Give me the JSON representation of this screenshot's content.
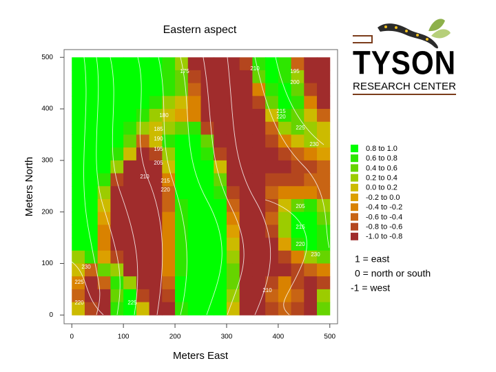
{
  "chart_data": {
    "type": "heatmap",
    "title": "Eastern aspect",
    "xlabel": "Meters East",
    "ylabel": "Meters North",
    "xlim": [
      -15,
      515
    ],
    "ylim": [
      -17,
      515
    ],
    "xticks": [
      0,
      100,
      200,
      300,
      400,
      500
    ],
    "yticks": [
      0,
      100,
      200,
      300,
      400,
      500
    ],
    "x": [
      12.5,
      37.5,
      62.5,
      87.5,
      112.5,
      137.5,
      162.5,
      187.5,
      212.5,
      237.5,
      262.5,
      287.5,
      312.5,
      337.5,
      362.5,
      387.5,
      412.5,
      437.5,
      462.5,
      487.5
    ],
    "y": [
      487.5,
      462.5,
      437.5,
      412.5,
      387.5,
      362.5,
      337.5,
      312.5,
      287.5,
      262.5,
      237.5,
      212.5,
      187.5,
      162.5,
      137.5,
      112.5,
      87.5,
      62.5,
      37.5,
      12.5
    ],
    "values": [
      [
        0.9,
        0.9,
        0.9,
        0.9,
        0.9,
        0.9,
        0.9,
        0.7,
        0.3,
        -0.9,
        -0.9,
        -0.9,
        -0.9,
        -0.7,
        0.7,
        0.9,
        0.7,
        -0.5,
        -0.9,
        -0.9
      ],
      [
        0.9,
        0.9,
        0.9,
        0.9,
        0.9,
        0.9,
        0.9,
        0.7,
        0.5,
        -0.7,
        -0.9,
        -0.9,
        -0.9,
        -0.9,
        0.5,
        0.9,
        0.7,
        0.3,
        -0.9,
        -0.9
      ],
      [
        0.9,
        0.9,
        0.9,
        0.9,
        0.9,
        0.9,
        0.9,
        0.7,
        0.5,
        -0.5,
        -0.9,
        -0.9,
        -0.9,
        -0.9,
        -0.3,
        0.7,
        0.9,
        0.5,
        -0.7,
        -0.9
      ],
      [
        0.9,
        0.9,
        0.9,
        0.9,
        0.9,
        0.9,
        0.7,
        0.3,
        0.1,
        -0.3,
        -0.9,
        -0.9,
        -0.9,
        -0.9,
        -0.7,
        0.5,
        0.9,
        0.7,
        -0.3,
        -0.9
      ],
      [
        0.9,
        0.9,
        0.9,
        0.9,
        0.9,
        0.7,
        0.3,
        0.1,
        -0.1,
        -0.3,
        -0.9,
        -0.9,
        -0.9,
        -0.9,
        -0.9,
        0.1,
        0.7,
        0.5,
        0.1,
        -0.5
      ],
      [
        0.9,
        0.9,
        0.9,
        0.9,
        0.7,
        0.3,
        0.1,
        0.3,
        0.5,
        0.7,
        -0.7,
        -0.9,
        -0.9,
        -0.9,
        -0.9,
        -0.5,
        0.3,
        0.5,
        0.3,
        0.1
      ],
      [
        0.9,
        0.9,
        0.9,
        0.9,
        0.5,
        -0.5,
        0.1,
        0.7,
        0.9,
        0.9,
        0.5,
        -0.9,
        -0.9,
        -0.9,
        -0.9,
        -0.7,
        -0.3,
        0.1,
        0.3,
        0.1
      ],
      [
        0.9,
        0.9,
        0.9,
        0.7,
        0.1,
        -0.9,
        -0.7,
        0.3,
        0.9,
        0.9,
        0.7,
        -0.7,
        -0.9,
        -0.9,
        -0.9,
        -0.9,
        -0.7,
        -0.5,
        -0.3,
        -0.1
      ],
      [
        0.9,
        0.9,
        0.9,
        0.3,
        -0.9,
        -0.9,
        -0.9,
        0.1,
        0.9,
        0.9,
        0.9,
        0.1,
        -0.9,
        -0.9,
        -0.9,
        -0.9,
        -0.9,
        -0.7,
        -0.7,
        -0.5
      ],
      [
        0.9,
        0.9,
        0.7,
        -0.7,
        -0.9,
        -0.9,
        -0.9,
        -0.3,
        0.9,
        0.9,
        0.9,
        0.5,
        -0.9,
        -0.9,
        -0.9,
        -0.7,
        -0.7,
        -0.7,
        -0.5,
        -0.5
      ],
      [
        0.9,
        0.9,
        0.3,
        -0.9,
        -0.9,
        -0.9,
        -0.9,
        -0.5,
        0.9,
        0.9,
        0.9,
        0.7,
        -0.7,
        -0.9,
        -0.9,
        -0.5,
        -0.3,
        -0.3,
        -0.3,
        -0.5
      ],
      [
        0.9,
        0.9,
        0.1,
        -0.9,
        -0.9,
        -0.9,
        -0.9,
        -0.5,
        0.7,
        0.9,
        0.9,
        0.9,
        -0.5,
        -0.9,
        -0.9,
        -0.7,
        0.1,
        0.5,
        0.7,
        0.3
      ],
      [
        0.9,
        0.9,
        -0.1,
        -0.9,
        -0.9,
        -0.9,
        -0.9,
        -0.3,
        0.7,
        0.9,
        0.9,
        0.9,
        -0.3,
        -0.9,
        -0.9,
        -0.5,
        0.3,
        0.9,
        0.9,
        0.5
      ],
      [
        0.9,
        0.9,
        -0.3,
        -0.9,
        -0.9,
        -0.9,
        -0.9,
        -0.3,
        0.7,
        0.9,
        0.9,
        0.9,
        -0.1,
        -0.9,
        -0.9,
        -0.7,
        0.3,
        0.9,
        0.9,
        0.7
      ],
      [
        0.9,
        0.9,
        -0.3,
        -0.9,
        -0.9,
        -0.9,
        -0.9,
        -0.3,
        0.7,
        0.9,
        0.9,
        0.9,
        0.1,
        -0.9,
        -0.9,
        -0.9,
        -0.1,
        0.7,
        0.9,
        0.7
      ],
      [
        0.3,
        0.7,
        -0.1,
        -0.7,
        -0.9,
        -0.9,
        -0.9,
        -0.3,
        0.7,
        0.9,
        0.9,
        0.9,
        0.3,
        -0.9,
        -0.9,
        -0.9,
        -0.7,
        -0.3,
        0.3,
        0.5
      ],
      [
        0.1,
        -0.5,
        0.5,
        0.3,
        -0.9,
        -0.9,
        -0.9,
        -0.3,
        0.7,
        0.9,
        0.9,
        0.9,
        0.5,
        -0.9,
        -0.9,
        -0.9,
        -0.9,
        -0.7,
        -0.5,
        -0.3
      ],
      [
        -0.3,
        -0.9,
        -0.5,
        0.7,
        0.3,
        -0.9,
        -0.9,
        -0.5,
        0.9,
        0.9,
        0.9,
        0.9,
        0.5,
        -0.9,
        -0.9,
        -0.7,
        -0.3,
        -0.7,
        -0.9,
        -0.7
      ],
      [
        -0.5,
        -0.9,
        -0.9,
        0.5,
        0.9,
        -0.7,
        -0.9,
        -0.7,
        0.9,
        0.9,
        0.9,
        0.9,
        0.3,
        -0.9,
        -0.9,
        -0.5,
        -0.3,
        -0.5,
        -0.9,
        0.3
      ],
      [
        0.1,
        -0.7,
        -0.9,
        0.7,
        0.9,
        0.1,
        -0.9,
        -0.9,
        0.7,
        0.9,
        0.9,
        0.9,
        0.1,
        -0.9,
        -0.9,
        -0.7,
        -0.5,
        -0.7,
        -0.9,
        0.5
      ]
    ],
    "legend": {
      "labels": [
        "0.8 to 1.0",
        "0.6 to 0.8",
        "0.4 to 0.6",
        "0.2 to 0.4",
        "0.0 to 0.2",
        "-0.2 to 0.0",
        "-0.4 to -0.2",
        "-0.6 to -0.4",
        "-0.8 to -0.6",
        "-1.0 to -0.8"
      ],
      "colors": [
        "#00ff00",
        "#2ee600",
        "#66d400",
        "#9ccc00",
        "#ccbb00",
        "#dca000",
        "#d98200",
        "#c86414",
        "#b4461e",
        "#a02c2c"
      ],
      "breaks": [
        -1.0,
        -0.8,
        -0.6,
        -0.4,
        -0.2,
        0.0,
        0.2,
        0.4,
        0.6,
        0.8,
        1.0
      ]
    },
    "contour_labels": [
      "175",
      "180",
      "185",
      "190",
      "195",
      "205",
      "210",
      "215",
      "220",
      "210",
      "195",
      "200",
      "215",
      "220",
      "225",
      "230",
      "205",
      "215",
      "220",
      "230",
      "230",
      "225",
      "220",
      "225",
      "210"
    ],
    "notes": [
      "1 = east",
      "0 = north or south",
      "-1 = west"
    ]
  },
  "logo": {
    "name": "TYSON",
    "subtitle": "RESEARCH CENTER"
  }
}
